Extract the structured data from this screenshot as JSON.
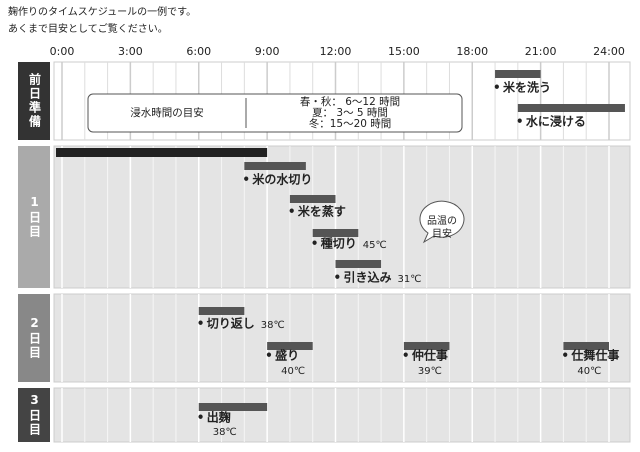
{
  "header": {
    "lines": [
      "麹作りのタイムスケジュールの一例です。",
      "あくまで目安としてご覧ください。"
    ]
  },
  "axis": {
    "min": 0,
    "max": 24,
    "ticks": [
      {
        "value": 0,
        "label": "0:00"
      },
      {
        "value": 3,
        "label": "3:00"
      },
      {
        "value": 6,
        "label": "6:00"
      },
      {
        "value": 9,
        "label": "9:00"
      },
      {
        "value": 12,
        "label": "12:00"
      },
      {
        "value": 15,
        "label": "15:00"
      },
      {
        "value": 18,
        "label": "18:00"
      },
      {
        "value": 21,
        "label": "21:00"
      },
      {
        "value": 24,
        "label": "24:00"
      }
    ]
  },
  "rows": [
    {
      "label": "前日準備",
      "tasks": [
        {
          "name": "米を洗う",
          "start": 19,
          "end": 21
        },
        {
          "name": "水に浸ける",
          "start": 20,
          "end": 24.7
        }
      ]
    },
    {
      "label": "1日目",
      "tasks": [
        {
          "start": 0,
          "end": 9
        },
        {
          "name": "米の水切り",
          "start": 8,
          "end": 10.7
        },
        {
          "name": "米を蒸す",
          "start": 10,
          "end": 12
        },
        {
          "name": "種切り",
          "start": 11,
          "end": 13,
          "temp": "45℃"
        },
        {
          "name": "引き込み",
          "start": 12,
          "end": 14,
          "temp": "31℃"
        }
      ]
    },
    {
      "label": "2日目",
      "tasks": [
        {
          "name": "切り返し",
          "start": 6,
          "end": 8,
          "temp": "38℃"
        },
        {
          "name": "盛り",
          "start": 9,
          "end": 11,
          "temp": "40℃"
        },
        {
          "name": "仲仕事",
          "start": 15,
          "end": 17,
          "temp": "39℃"
        },
        {
          "name": "仕舞仕事",
          "start": 22,
          "end": 24,
          "temp": "40℃"
        }
      ]
    },
    {
      "label": "3日目",
      "tasks": [
        {
          "name": "出麹",
          "start": 6,
          "end": 9,
          "temp": "38℃"
        }
      ]
    }
  ],
  "soak_box": {
    "title": "浸水時間の目安",
    "lines": [
      "春・秋： 6～12 時間",
      "夏： 3～ 5 時間",
      "冬：15～20 時間"
    ]
  },
  "callout": {
    "lines": [
      "品温の",
      "目安"
    ]
  }
}
